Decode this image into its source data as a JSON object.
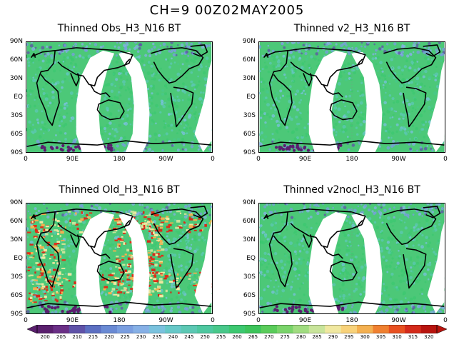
{
  "title": "CH=9   00Z02MAY2005",
  "lat_labels": [
    "90N",
    "60N",
    "30N",
    "EQ",
    "30S",
    "60S",
    "90S"
  ],
  "lon_labels": [
    "0",
    "90E",
    "180",
    "90W",
    "0"
  ],
  "panels": [
    {
      "title": "Thinned Obs_H3_N16 BT",
      "noise": false
    },
    {
      "title": "Thinned v2_H3_N16 BT",
      "noise": false
    },
    {
      "title": "Thinned Old_H3_N16 BT",
      "noise": true
    },
    {
      "title": "Thinned v2nocl_H3_N16 BT",
      "noise": false
    }
  ],
  "colorbar": {
    "values": [
      "200",
      "205",
      "210",
      "215",
      "220",
      "225",
      "230",
      "235",
      "240",
      "245",
      "250",
      "255",
      "260",
      "265",
      "270",
      "275",
      "280",
      "285",
      "290",
      "295",
      "300",
      "305",
      "310",
      "315",
      "320"
    ],
    "colors": [
      "#5a1f6e",
      "#6a2f86",
      "#5f52a8",
      "#5c6fc2",
      "#6a8ad4",
      "#7a9ee0",
      "#86b0e6",
      "#7ac2de",
      "#66c8c8",
      "#5cc8b4",
      "#4ec8a0",
      "#48c88a",
      "#3cc870",
      "#3cc45a",
      "#5acc5a",
      "#7ad46a",
      "#a0dc80",
      "#c8e49a",
      "#f0e8a0",
      "#f8d27a",
      "#f4b050",
      "#f08030",
      "#e85020",
      "#d42a1a",
      "#b8140e"
    ]
  }
}
